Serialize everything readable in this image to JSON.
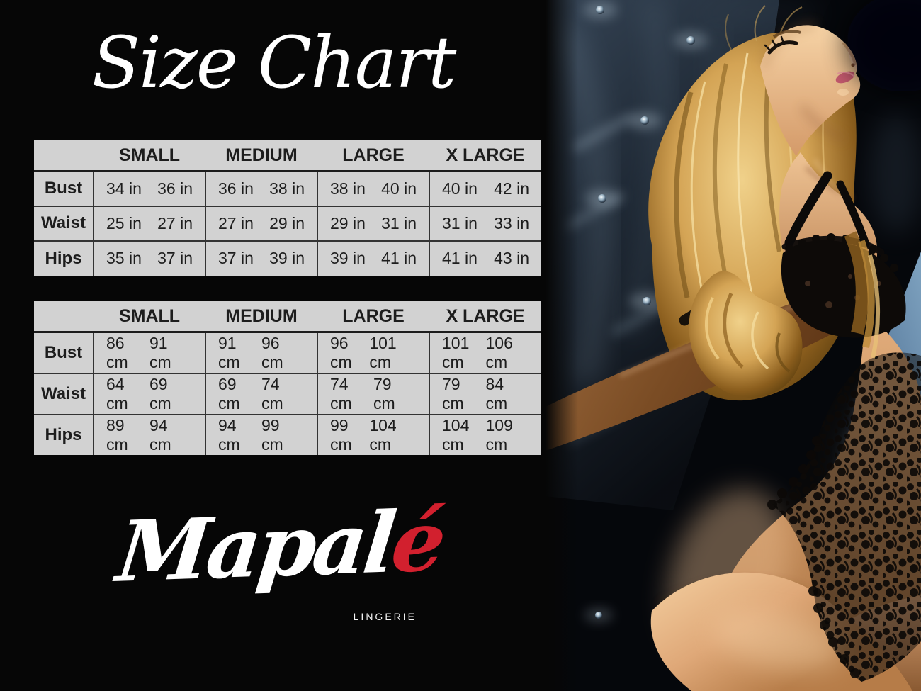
{
  "title": "Size Chart",
  "brand": {
    "script_prefix": "Mapal",
    "script_accent": "é",
    "subtitle": "LINGERIE",
    "accent_color": "#d2202e"
  },
  "colors": {
    "page_background": "#060606",
    "table_background": "#d2d2d2",
    "table_grid": "#333333",
    "table_text": "#1d1d1d",
    "title_text": "#ffffff"
  },
  "tables": [
    {
      "name": "inches",
      "columns": [
        "SMALL",
        "MEDIUM",
        "LARGE",
        "X LARGE"
      ],
      "rows": [
        {
          "label": "Bust",
          "values": [
            [
              "34 in",
              "36 in"
            ],
            [
              "36 in",
              "38 in"
            ],
            [
              "38 in",
              "40 in"
            ],
            [
              "40 in",
              "42 in"
            ]
          ]
        },
        {
          "label": "Waist",
          "values": [
            [
              "25 in",
              "27 in"
            ],
            [
              "27 in",
              "29 in"
            ],
            [
              "29 in",
              "31 in"
            ],
            [
              "31 in",
              "33 in"
            ]
          ]
        },
        {
          "label": "Hips",
          "values": [
            [
              "35 in",
              "37 in"
            ],
            [
              "37 in",
              "39 in"
            ],
            [
              "39 in",
              "41 in"
            ],
            [
              "41 in",
              "43 in"
            ]
          ]
        }
      ]
    },
    {
      "name": "centimeters",
      "columns": [
        "SMALL",
        "MEDIUM",
        "LARGE",
        "X LARGE"
      ],
      "rows": [
        {
          "label": "Bust",
          "values": [
            [
              "86 cm",
              "91 cm"
            ],
            [
              "91 cm",
              "96 cm"
            ],
            [
              "96 cm",
              "101 cm"
            ],
            [
              "101 cm",
              "106 cm"
            ]
          ]
        },
        {
          "label": "Waist",
          "values": [
            [
              "64 cm",
              "69 cm"
            ],
            [
              "69 cm",
              "74 cm"
            ],
            [
              "74 cm",
              "79 cm"
            ],
            [
              "79 cm",
              "84 cm"
            ]
          ]
        },
        {
          "label": "Hips",
          "values": [
            [
              "89 cm",
              "94 cm"
            ],
            [
              "94 cm",
              "99 cm"
            ],
            [
              "99 cm",
              "104 cm"
            ],
            [
              "104 cm",
              "109 cm"
            ]
          ]
        }
      ]
    }
  ]
}
